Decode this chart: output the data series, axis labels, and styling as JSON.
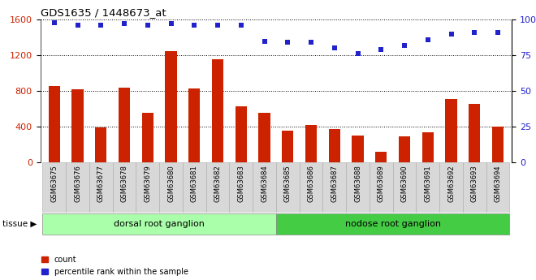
{
  "title": "GDS1635 / 1448673_at",
  "categories": [
    "GSM63675",
    "GSM63676",
    "GSM63677",
    "GSM63678",
    "GSM63679",
    "GSM63680",
    "GSM63681",
    "GSM63682",
    "GSM63683",
    "GSM63684",
    "GSM63685",
    "GSM63686",
    "GSM63687",
    "GSM63688",
    "GSM63689",
    "GSM63690",
    "GSM63691",
    "GSM63692",
    "GSM63693",
    "GSM63694"
  ],
  "bar_values": [
    860,
    820,
    390,
    840,
    560,
    1250,
    830,
    1160,
    630,
    560,
    360,
    420,
    370,
    300,
    120,
    290,
    340,
    710,
    660,
    400
  ],
  "percentile_values": [
    98,
    96,
    96,
    97,
    96,
    97,
    96,
    96,
    96,
    85,
    84,
    84,
    80,
    76,
    79,
    82,
    86,
    90,
    91,
    91
  ],
  "bar_color": "#cc2200",
  "dot_color": "#2222cc",
  "ylim_left": [
    0,
    1600
  ],
  "ylim_right": [
    0,
    100
  ],
  "yticks_left": [
    0,
    400,
    800,
    1200,
    1600
  ],
  "yticks_right": [
    0,
    25,
    50,
    75,
    100
  ],
  "group1_label": "dorsal root ganglion",
  "group2_label": "nodose root ganglion",
  "group1_count": 10,
  "group2_count": 10,
  "tissue_label": "tissue",
  "legend_count": "count",
  "legend_percentile": "percentile rank within the sample",
  "bg_plot": "#ffffff",
  "bg_xticklabel": "#e0e0e0",
  "bg_group1": "#aaffaa",
  "bg_group2": "#44cc44",
  "grid_color": "#000000"
}
